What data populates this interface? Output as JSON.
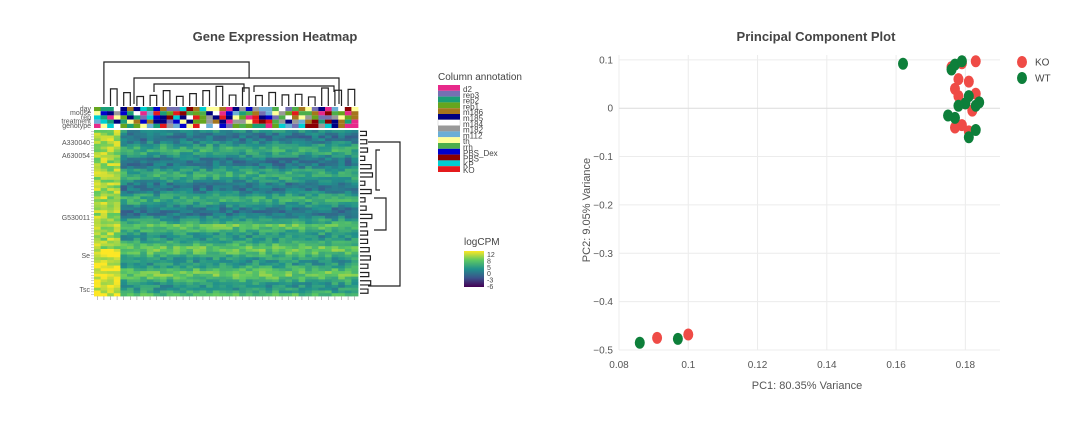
{
  "chart_data": [
    {
      "type": "heatmap",
      "title": "Gene Expression Heatmap",
      "legend": {
        "annotation_title": "Column annotation",
        "annotation_entries": [
          {
            "label": "d2",
            "color": "#e7298a"
          },
          {
            "label": "rep3",
            "color": "#7570b3"
          },
          {
            "label": "rep2",
            "color": "#1b9e77"
          },
          {
            "label": "rep1",
            "color": "#66a61e"
          },
          {
            "label": "m186",
            "color": "#a6761d"
          },
          {
            "label": "m185",
            "color": "#000080"
          },
          {
            "label": "m184",
            "color": "#ffffff"
          },
          {
            "label": "m182",
            "color": "#999999"
          },
          {
            "label": "m112",
            "color": "#6baed6"
          },
          {
            "label": "th",
            "color": "#ffff99"
          },
          {
            "label": "rrh",
            "color": "#4daf4a"
          },
          {
            "label": "PBS_Dex",
            "color": "#0000cd"
          },
          {
            "label": "PBS",
            "color": "#8b0000"
          },
          {
            "label": "KP",
            "color": "#00ced1"
          },
          {
            "label": "KO",
            "color": "#e41a1c"
          }
        ],
        "colorbar_title": "logCPM",
        "colorbar_ticks": [
          "12",
          "8",
          "5",
          "0",
          "-3",
          "-6"
        ],
        "colorscale": [
          "#fde725",
          "#5ec962",
          "#21918c",
          "#3b528b",
          "#440154"
        ]
      },
      "row_annotation_labels": [
        "day",
        "mouse",
        "rep",
        "treatment",
        "genotype"
      ],
      "visible_row_labels": [
        "A330040",
        "A630054",
        "G530011",
        "Se",
        "Tsc"
      ],
      "n_columns": 40,
      "n_rows": 60
    },
    {
      "type": "scatter",
      "title": "Principal Component Plot",
      "xlabel": "PC1: 80.35% Variance",
      "ylabel": "PC2: 9.05% Variance",
      "xlim": [
        0.08,
        0.19
      ],
      "ylim": [
        -0.5,
        0.11
      ],
      "xticks": [
        0.08,
        0.1,
        0.12,
        0.14,
        0.16,
        0.18
      ],
      "xtick_labels": [
        "0.08",
        "0.1",
        "0.12",
        "0.14",
        "0.16",
        "0.18"
      ],
      "yticks": [
        0.1,
        0,
        -0.1,
        -0.2,
        -0.3,
        -0.4,
        -0.5
      ],
      "ytick_labels": [
        "0.1",
        "0",
        "−0.1",
        "−0.2",
        "−0.3",
        "−0.4",
        "−0.5"
      ],
      "grid": true,
      "legend_position": "top-right",
      "series": [
        {
          "name": "KO",
          "color": "#ef4b46",
          "x": [
            0.091,
            0.1,
            0.179,
            0.183,
            0.177,
            0.181,
            0.183,
            0.178,
            0.18,
            0.182,
            0.177,
            0.179,
            0.181,
            0.176,
            0.178
          ],
          "y": [
            -0.475,
            -0.468,
            0.093,
            0.097,
            0.04,
            0.055,
            0.03,
            0.025,
            0.01,
            -0.005,
            -0.04,
            -0.035,
            -0.048,
            0.085,
            0.06
          ]
        },
        {
          "name": "WT",
          "color": "#0d7f3a",
          "x": [
            0.086,
            0.097,
            0.162,
            0.176,
            0.177,
            0.179,
            0.18,
            0.178,
            0.181,
            0.183,
            0.184,
            0.177,
            0.175,
            0.183,
            0.181
          ],
          "y": [
            -0.485,
            -0.477,
            0.092,
            0.08,
            0.09,
            0.097,
            0.01,
            0.005,
            0.025,
            0.005,
            0.012,
            -0.02,
            -0.015,
            -0.045,
            -0.06
          ]
        }
      ]
    }
  ]
}
